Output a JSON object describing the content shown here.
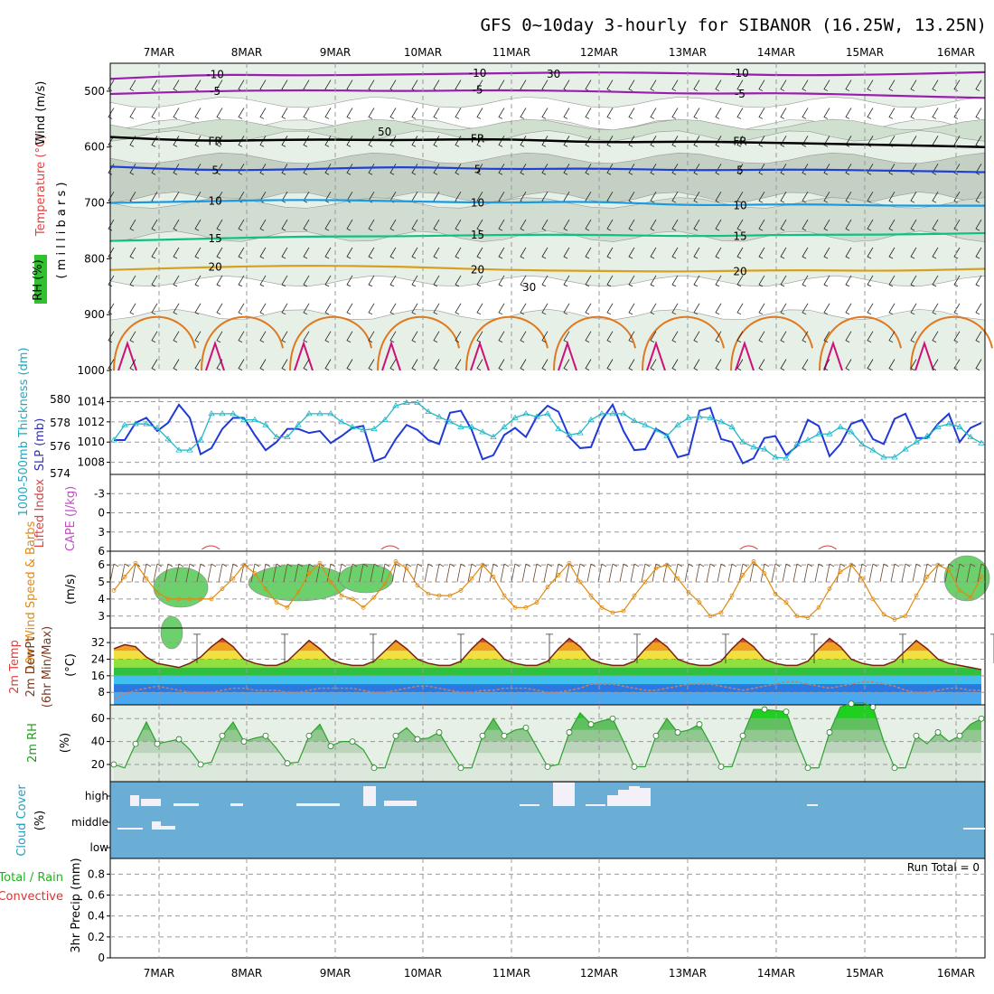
{
  "title": "GFS 0~10day 3-hourly for SIBANOR (16.25W, 13.25N)",
  "x_axis": {
    "dates": [
      "7MAR",
      "8MAR",
      "9MAR",
      "10MAR",
      "11MAR",
      "12MAR",
      "13MAR",
      "14MAR",
      "15MAR",
      "16MAR"
    ]
  },
  "chart_data": [
    {
      "type": "heatmap",
      "panel": "upper-air",
      "ylabel_parts": [
        "RH (%)",
        "Temperature (°C)",
        "Wind (m/s)"
      ],
      "ylabel_unit": "( m i l l i b a r s )",
      "y_ticks": [
        500,
        600,
        700,
        800,
        900,
        1000
      ],
      "ylim": [
        450,
        1000
      ],
      "temperature_contours": [
        {
          "label": "-10",
          "color": "#9a1cb0",
          "p": [
            478,
            470,
            472,
            470,
            468,
            466,
            468,
            472,
            470,
            466
          ]
        },
        {
          "label": "-5",
          "color": "#9a1cb0",
          "p": [
            505,
            500,
            498,
            500,
            498,
            500,
            505,
            503,
            508,
            512
          ]
        },
        {
          "label": "FR",
          "color": "#000000",
          "p": [
            582,
            590,
            586,
            588,
            585,
            592,
            590,
            593,
            596,
            600
          ]
        },
        {
          "label": "5",
          "color": "#2040d0",
          "p": [
            635,
            642,
            640,
            635,
            640,
            638,
            642,
            640,
            642,
            645
          ]
        },
        {
          "label": "10",
          "color": "#1a9ae0",
          "p": [
            700,
            697,
            694,
            697,
            700,
            697,
            705,
            702,
            705,
            705
          ]
        },
        {
          "label": "15",
          "color": "#10c080",
          "p": [
            768,
            764,
            760,
            760,
            757,
            757,
            760,
            757,
            757,
            754
          ]
        },
        {
          "label": "20",
          "color": "#d8a020",
          "p": [
            820,
            815,
            812,
            814,
            820,
            822,
            823,
            820,
            822,
            818
          ]
        }
      ],
      "rh_labels": [
        "30",
        "50",
        "30"
      ]
    },
    {
      "type": "line",
      "panel": "slp-thickness",
      "ylabel": "SLP (mb)",
      "ylabel2": "1000-500mb Thickness (dm)",
      "y_ticks_slp": [
        1008,
        1010,
        1012,
        1014
      ],
      "y_ticks_thickness": [
        574,
        576,
        578,
        580
      ],
      "ylim_slp": [
        1006.8,
        1014.4
      ],
      "series": [
        {
          "color": "#1f3ad6",
          "values": [
            1010.2,
            1010.2,
            1011.9,
            1012.4,
            1011.1,
            1011.9,
            1013.7,
            1012.4,
            1008.8,
            1009.4,
            1011.3,
            1012.4,
            1012.4,
            1010.7,
            1009.2,
            1010.0,
            1011.3,
            1011.3,
            1010.9,
            1011.1,
            1009.9,
            1010.6,
            1011.4,
            1011.6,
            1008.1,
            1008.5,
            1010.3,
            1011.7,
            1011.2,
            1010.2,
            1009.8,
            1012.9,
            1013.1,
            1011.2,
            1008.3,
            1008.7,
            1010.7,
            1011.4,
            1010.5,
            1012.5,
            1013.6,
            1013.0,
            1010.5,
            1009.4,
            1009.5,
            1012.2,
            1013.7,
            1011.1,
            1009.2,
            1009.3,
            1011.3,
            1010.7,
            1008.5,
            1008.8,
            1013.1,
            1013.4,
            1010.3,
            1010.0,
            1007.9,
            1008.4,
            1010.4,
            1010.6,
            1008.7,
            1009.6,
            1012.2,
            1011.6,
            1008.6,
            1009.8,
            1011.8,
            1012.2,
            1010.3,
            1009.8,
            1012.3,
            1012.8,
            1010.4,
            1010.4,
            1011.8,
            1012.8,
            1010.0,
            1011.4,
            1011.9
          ]
        },
        {
          "color": "#20b8c8",
          "values": [
            1010.2,
            1011.7,
            1011.8,
            1011.8,
            1011.4,
            1010.3,
            1009.2,
            1009.2,
            1010.2,
            1012.8,
            1012.8,
            1012.8,
            1012.2,
            1012.2,
            1011.7,
            1010.5,
            1010.5,
            1011.7,
            1012.8,
            1012.8,
            1012.8,
            1012.0,
            1011.5,
            1011.2,
            1011.3,
            1012.2,
            1013.6,
            1013.9,
            1013.9,
            1013.0,
            1012.5,
            1012.0,
            1011.5,
            1011.5,
            1011.0,
            1010.5,
            1011.5,
            1012.4,
            1012.8,
            1012.5,
            1012.8,
            1011.3,
            1010.7,
            1010.9,
            1012.2,
            1012.8,
            1012.8,
            1012.8,
            1012.1,
            1011.7,
            1011.2,
            1010.6,
            1011.7,
            1012.4,
            1012.5,
            1012.4,
            1012.0,
            1011.5,
            1010.0,
            1009.5,
            1009.3,
            1008.5,
            1008.4,
            1009.8,
            1010.2,
            1010.8,
            1010.8,
            1011.5,
            1011.0,
            1009.8,
            1009.2,
            1008.5,
            1008.5,
            1009.3,
            1010.0,
            1010.6,
            1011.5,
            1011.8,
            1011.5,
            1010.5,
            1009.9
          ]
        }
      ]
    },
    {
      "type": "line",
      "panel": "instability",
      "ylabel": "Lifted Index",
      "ylabel2": "CAPE (J/kg)",
      "y_ticks": [
        "-3",
        "0",
        "3",
        "6"
      ],
      "ylim": [
        6,
        -6
      ],
      "series": [
        {
          "name": "",
          "color": "#d04040",
          "values": []
        }
      ],
      "cape_bumps": [
        {
          "x_frac": 0.115,
          "label": ""
        },
        {
          "x_frac": 0.32,
          "label": ""
        },
        {
          "x_frac": 0.73,
          "label": ""
        },
        {
          "x_frac": 0.82,
          "label": ""
        }
      ]
    },
    {
      "type": "line",
      "panel": "wind10m",
      "ylabel": "10m Wind Speed & Barbs",
      "ylabel_unit": "(m/s)",
      "y_ticks": [
        3,
        4,
        5,
        6
      ],
      "ylim": [
        2.3,
        6.8
      ],
      "series": [
        {
          "color": "#e08a10",
          "values": [
            4.5,
            5.3,
            6.1,
            5.2,
            4.4,
            4.0,
            4.0,
            4.0,
            4.0,
            4.0,
            4.6,
            5.2,
            6.0,
            5.5,
            4.6,
            3.8,
            3.5,
            4.4,
            5.5,
            6.1,
            5.0,
            4.2,
            4.0,
            3.5,
            4.1,
            4.9,
            6.2,
            5.8,
            4.8,
            4.3,
            4.2,
            4.2,
            4.5,
            5.2,
            6.0,
            5.3,
            4.2,
            3.5,
            3.5,
            3.8,
            4.7,
            5.4,
            6.1,
            5.0,
            4.2,
            3.5,
            3.2,
            3.3,
            4.2,
            5.0,
            5.8,
            6.0,
            5.2,
            4.4,
            3.8,
            3.0,
            3.2,
            4.2,
            5.4,
            6.2,
            5.5,
            4.3,
            3.8,
            3.0,
            2.9,
            3.5,
            4.6,
            5.6,
            6.0,
            5.2,
            4.0,
            3.1,
            2.8,
            3.0,
            4.2,
            5.3,
            6.0,
            5.7,
            4.5,
            4.1,
            5.3
          ]
        }
      ]
    },
    {
      "type": "area",
      "panel": "temp2m",
      "ylabel": "2m Temp",
      "ylabel2": "2m DewPt",
      "ylabel3": "(6hr Min/Max)",
      "ylabel_unit": "(°C)",
      "y_ticks": [
        8,
        16,
        24,
        32
      ],
      "ylim": [
        2,
        39
      ],
      "series": [
        {
          "color": "#7a2010",
          "values": [
            29,
            31,
            30,
            25,
            22,
            21,
            20,
            22,
            25,
            30,
            34,
            30,
            24,
            22,
            21,
            21,
            23,
            28,
            33,
            29,
            24,
            22,
            21,
            21,
            23,
            28,
            33,
            29,
            24,
            22,
            21,
            21,
            23,
            29,
            34,
            30,
            24,
            22,
            21,
            21,
            23,
            29,
            34,
            30,
            24,
            22,
            21,
            21,
            23,
            29,
            34,
            30,
            24,
            22,
            21,
            21,
            23,
            29,
            34,
            30,
            24,
            22,
            21,
            21,
            23,
            29,
            34,
            30,
            24,
            22,
            21,
            21,
            23,
            28,
            33,
            29,
            24,
            22,
            21,
            20,
            19
          ]
        },
        {
          "color": "#c08070",
          "values": [
            5,
            7,
            9,
            10,
            11,
            10,
            9,
            8,
            8,
            8,
            9,
            10,
            10,
            9,
            9,
            9,
            8,
            8,
            9,
            10,
            10,
            10,
            10,
            9,
            8,
            8,
            9,
            10,
            11,
            11,
            10,
            9,
            8,
            8,
            9,
            9,
            10,
            10,
            10,
            9,
            8,
            8,
            9,
            10,
            12,
            12,
            12,
            11,
            10,
            9,
            9,
            10,
            11,
            12,
            12,
            12,
            11,
            10,
            9,
            10,
            11,
            12,
            13,
            13,
            12,
            11,
            10,
            11,
            12,
            13,
            13,
            12,
            11,
            9,
            8,
            8,
            9,
            10,
            10,
            9,
            9
          ]
        }
      ]
    },
    {
      "type": "area",
      "panel": "rh2m",
      "ylabel": "2m RH",
      "ylabel_unit": "(%)",
      "y_ticks": [
        20,
        40,
        60
      ],
      "ylim": [
        5,
        72
      ],
      "series": [
        {
          "color": "#30a030",
          "values": [
            20,
            17,
            38,
            57,
            38,
            40,
            42,
            33,
            20,
            22,
            45,
            57,
            40,
            43,
            45,
            34,
            21,
            22,
            45,
            55,
            36,
            40,
            40,
            33,
            17,
            17,
            45,
            52,
            42,
            43,
            48,
            32,
            17,
            17,
            45,
            60,
            45,
            50,
            52,
            35,
            18,
            20,
            48,
            65,
            55,
            58,
            60,
            40,
            18,
            18,
            45,
            60,
            48,
            50,
            55,
            38,
            18,
            18,
            45,
            68,
            68,
            67,
            66,
            40,
            17,
            17,
            48,
            70,
            73,
            74,
            70,
            40,
            17,
            17,
            45,
            38,
            48,
            40,
            45,
            55,
            60
          ]
        }
      ]
    },
    {
      "type": "bar",
      "panel": "cloud",
      "ylabel": "Cloud Cover",
      "ylabel_unit": "(%)",
      "layers": [
        "high",
        "middle",
        "low"
      ]
    },
    {
      "type": "bar",
      "panel": "precip",
      "ylabel": "3hr Precip (mm)",
      "ylabel_parts": [
        "Total / Rain",
        "Convective"
      ],
      "y_ticks": [
        "0",
        "0.2",
        "0.4",
        "0.6",
        "0.8"
      ],
      "ylim": [
        0,
        0.95
      ],
      "annotation": "Run Total = 0"
    }
  ]
}
